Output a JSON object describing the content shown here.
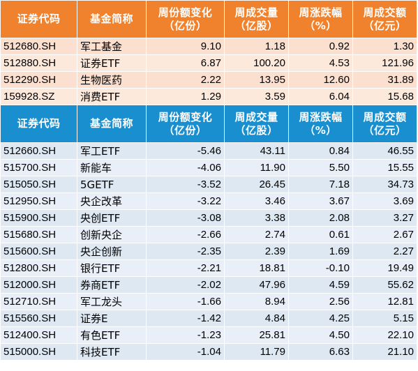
{
  "headers": [
    "证券代码",
    "基金简称",
    "周份额变化\n（亿份）",
    "周成交量\n（亿股）",
    "周涨跌幅\n（%）",
    "周成交额\n（亿元）"
  ],
  "increase_rows": [
    [
      "512680.SH",
      "军工基金",
      "9.10",
      "1.18",
      "0.92",
      "1.30"
    ],
    [
      "512880.SH",
      "证券ETF",
      "6.87",
      "100.20",
      "4.53",
      "121.96"
    ],
    [
      "512290.SH",
      "生物医药",
      "2.22",
      "13.95",
      "12.60",
      "31.89"
    ],
    [
      "159928.SZ",
      "消费ETF",
      "1.29",
      "3.59",
      "6.04",
      "15.68"
    ]
  ],
  "decrease_rows": [
    [
      "512660.SH",
      "军工ETF",
      "-5.46",
      "43.11",
      "0.84",
      "46.55"
    ],
    [
      "515700.SH",
      "新能车",
      "-4.06",
      "11.90",
      "5.50",
      "15.55"
    ],
    [
      "515050.SH",
      "5GETF",
      "-3.52",
      "26.45",
      "7.18",
      "34.73"
    ],
    [
      "512950.SH",
      "央企改革",
      "-3.22",
      "3.46",
      "3.67",
      "3.69"
    ],
    [
      "515900.SH",
      "央创ETF",
      "-3.08",
      "3.38",
      "2.08",
      "3.27"
    ],
    [
      "515680.SH",
      "创新央企",
      "-2.66",
      "2.74",
      "0.61",
      "2.67"
    ],
    [
      "515600.SH",
      "央企创新",
      "-2.35",
      "2.39",
      "1.69",
      "2.27"
    ],
    [
      "512800.SH",
      "银行ETF",
      "-2.21",
      "18.81",
      "-0.10",
      "19.49"
    ],
    [
      "512000.SH",
      "券商ETF",
      "-2.02",
      "47.96",
      "4.59",
      "55.62"
    ],
    [
      "512710.SH",
      "军工龙头",
      "-1.66",
      "8.94",
      "2.56",
      "12.81"
    ],
    [
      "515560.SH",
      "证券E",
      "-1.42",
      "4.84",
      "4.25",
      "5.15"
    ],
    [
      "512400.SH",
      "有色ETF",
      "-1.23",
      "25.81",
      "4.50",
      "22.10"
    ],
    [
      "515000.SH",
      "科技ETF",
      "-1.04",
      "11.79",
      "6.63",
      "21.10"
    ]
  ],
  "colors": {
    "top_header": "#f0822e",
    "bottom_header": "#1a8fcf",
    "top_row": "#fbe0d0",
    "bottom_row": "#dde8f3"
  }
}
